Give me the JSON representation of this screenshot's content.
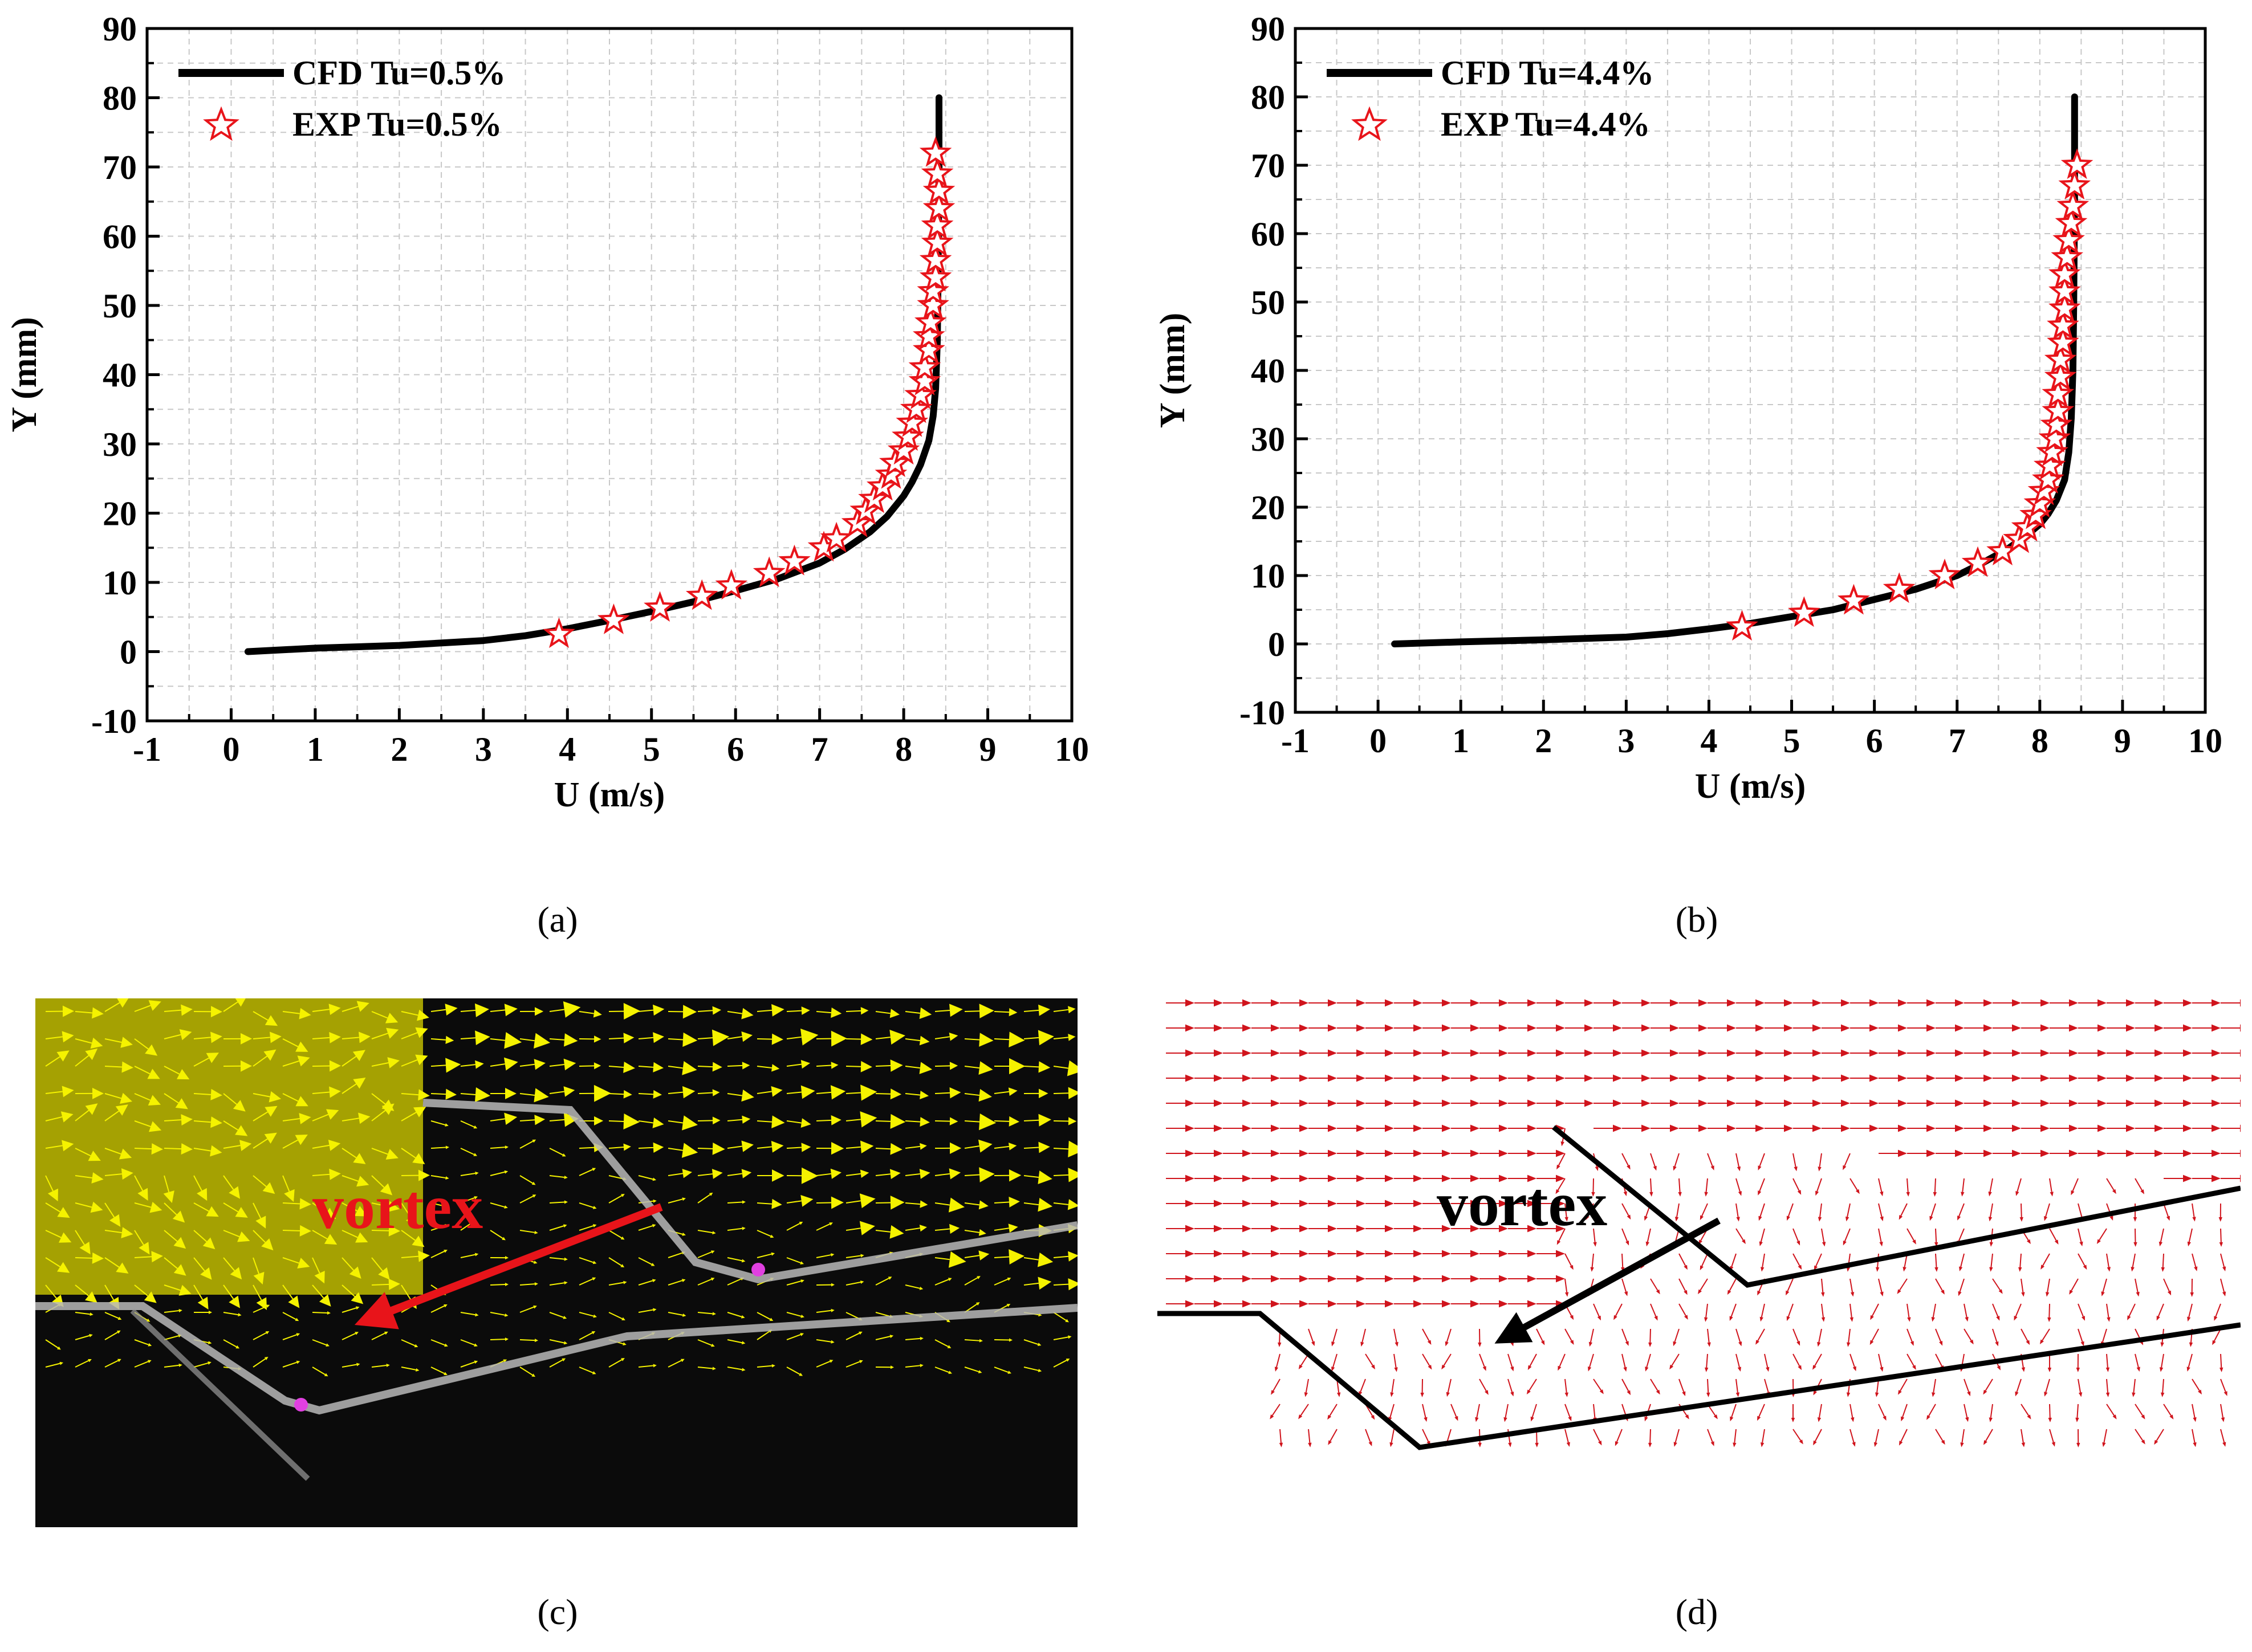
{
  "panels": {
    "a": {
      "label": "(a)"
    },
    "b": {
      "label": "(b)"
    },
    "c": {
      "label": "(c)",
      "annotation": "vortex"
    },
    "d": {
      "label": "(d)",
      "annotation": "vortex"
    }
  },
  "colors": {
    "cfd_line": "#000000",
    "exp_marker": "#e8141a",
    "piv_vectors": "#f5f200",
    "piv_background": "#0b0b0b",
    "cfd_vectors": "#d0141c",
    "annotation_c": "#e8141a",
    "annotation_d": "#000000"
  },
  "icons": {
    "exp_marker": "star-outline"
  },
  "chart_data": [
    {
      "type": "line",
      "panel": "a",
      "xlabel": "U (m/s)",
      "ylabel": "Y (mm)",
      "xlim": [
        -1,
        10
      ],
      "ylim": [
        -10,
        90
      ],
      "xticks": [
        -1,
        0,
        1,
        2,
        3,
        4,
        5,
        6,
        7,
        8,
        9,
        10
      ],
      "yticks": [
        -10,
        0,
        10,
        20,
        30,
        40,
        50,
        60,
        70,
        80,
        90
      ],
      "grid": true,
      "legend_position": "top-left",
      "series": [
        {
          "name": "CFD Tu=0.5%",
          "kind": "line",
          "x": [
            0.2,
            1.0,
            2.0,
            3.0,
            3.5,
            4.0,
            4.5,
            5.0,
            5.5,
            6.0,
            6.5,
            7.0,
            7.3,
            7.6,
            7.8,
            8.0,
            8.1,
            8.2,
            8.3,
            8.35,
            8.38,
            8.4,
            8.41,
            8.42,
            8.42
          ],
          "y": [
            0,
            0.5,
            0.9,
            1.6,
            2.3,
            3.3,
            4.5,
            5.8,
            7.2,
            8.8,
            10.5,
            12.8,
            14.8,
            17.3,
            19.5,
            22.5,
            24.5,
            27.0,
            30.5,
            34.0,
            38.0,
            45.0,
            55.0,
            70.0,
            80.0
          ]
        },
        {
          "name": "EXP Tu=0.5%",
          "kind": "scatter",
          "x": [
            3.9,
            4.55,
            5.1,
            5.6,
            5.95,
            6.4,
            6.7,
            7.05,
            7.2,
            7.45,
            7.55,
            7.65,
            7.75,
            7.85,
            7.9,
            8.0,
            8.05,
            8.1,
            8.15,
            8.2,
            8.25,
            8.25,
            8.3,
            8.3,
            8.32,
            8.35,
            8.35,
            8.38,
            8.38,
            8.4,
            8.4,
            8.42,
            8.42,
            8.4,
            8.38
          ],
          "y": [
            2.5,
            4.5,
            6.3,
            8.0,
            9.5,
            11.3,
            13.0,
            15.0,
            16.3,
            18.5,
            20.3,
            22.0,
            23.8,
            25.5,
            27.2,
            29.0,
            31.0,
            33.0,
            35.0,
            37.0,
            39.0,
            41.0,
            43.5,
            45.5,
            47.5,
            50.0,
            52.0,
            54.0,
            56.5,
            59.0,
            61.5,
            64.0,
            66.5,
            69.0,
            72.0
          ]
        }
      ]
    },
    {
      "type": "line",
      "panel": "b",
      "xlabel": "U (m/s)",
      "ylabel": "Y (mm)",
      "xlim": [
        -1,
        10
      ],
      "ylim": [
        -10,
        90
      ],
      "xticks": [
        -1,
        0,
        1,
        2,
        3,
        4,
        5,
        6,
        7,
        8,
        9,
        10
      ],
      "yticks": [
        -10,
        0,
        10,
        20,
        30,
        40,
        50,
        60,
        70,
        80,
        90
      ],
      "grid": true,
      "legend_position": "top-left",
      "series": [
        {
          "name": "CFD Tu=4.4%",
          "kind": "line",
          "x": [
            0.2,
            1.0,
            2.0,
            3.0,
            3.5,
            4.0,
            4.5,
            5.0,
            5.5,
            6.0,
            6.5,
            7.0,
            7.3,
            7.6,
            7.8,
            8.0,
            8.1,
            8.2,
            8.3,
            8.35,
            8.38,
            8.4,
            8.41,
            8.42,
            8.42
          ],
          "y": [
            0,
            0.3,
            0.6,
            1.0,
            1.5,
            2.2,
            3.0,
            4.0,
            5.0,
            6.5,
            8.0,
            10.0,
            11.8,
            13.8,
            15.5,
            17.5,
            19.0,
            21.0,
            24.0,
            28.0,
            33.0,
            40.0,
            50.0,
            65.0,
            80.0
          ]
        },
        {
          "name": "EXP Tu=4.4%",
          "kind": "scatter",
          "x": [
            4.4,
            5.15,
            5.75,
            6.3,
            6.85,
            7.25,
            7.55,
            7.75,
            7.85,
            7.95,
            8.0,
            8.05,
            8.1,
            8.12,
            8.15,
            8.18,
            8.2,
            8.22,
            8.22,
            8.25,
            8.25,
            8.28,
            8.28,
            8.3,
            8.3,
            8.3,
            8.33,
            8.35,
            8.38,
            8.4,
            8.42,
            8.45
          ],
          "y": [
            2.5,
            4.5,
            6.3,
            8.0,
            10.0,
            11.8,
            13.5,
            15.3,
            17.0,
            18.8,
            20.5,
            22.3,
            24.0,
            26.0,
            28.0,
            30.0,
            32.0,
            34.0,
            36.5,
            39.0,
            41.5,
            44.0,
            46.5,
            49.0,
            51.5,
            54.0,
            56.5,
            59.0,
            61.5,
            64.0,
            67.0,
            70.0
          ]
        }
      ]
    }
  ]
}
